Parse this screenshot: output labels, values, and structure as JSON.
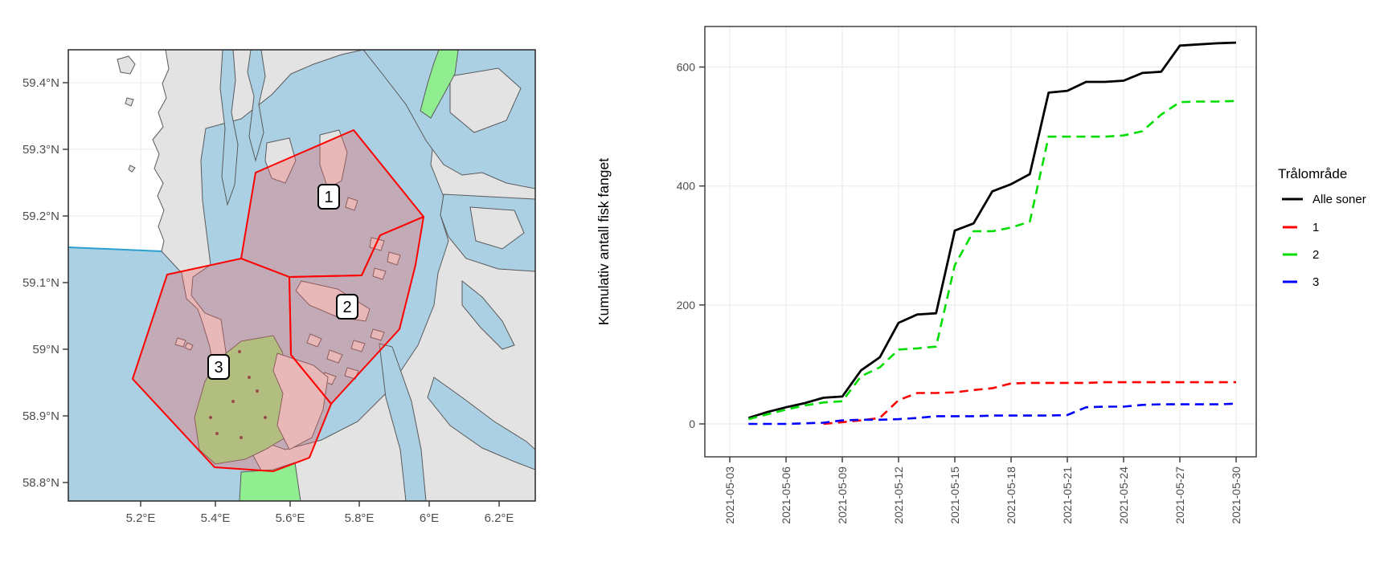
{
  "map": {
    "lat_ticks": [
      "59.4°N",
      "59.3°N",
      "59.2°N",
      "59.1°N",
      "59°N",
      "58.9°N",
      "58.8°N"
    ],
    "lon_ticks": [
      "5.2°E",
      "5.4°E",
      "5.6°E",
      "5.8°E",
      "6°E",
      "6.2°E"
    ],
    "zone_labels": [
      "1",
      "2",
      "3"
    ],
    "colors": {
      "sea": "#abd0e4",
      "land": "#e3e3e3",
      "no_data_area": "#ffffff",
      "green_area": "#90ee90",
      "green_in_zone": "#a3bf80",
      "zone_border": "#ff0000",
      "zone_fill": "rgba(240,100,100,0.35)",
      "sea_boundary_line": "#2b9fd0",
      "speckle": "#6b4040"
    }
  },
  "chart": {
    "ylabel": "Kumulativ antall fisk fanget",
    "legend": {
      "title": "Trålområde",
      "entries": [
        {
          "label": "Alle soner",
          "color": "#000000",
          "dashed": false
        },
        {
          "label": "1",
          "color": "#ff0000",
          "dashed": true
        },
        {
          "label": "2",
          "color": "#00dd00",
          "dashed": true
        },
        {
          "label": "3",
          "color": "#0000ff",
          "dashed": true
        }
      ]
    }
  },
  "chart_data": {
    "type": "line",
    "title": "",
    "xlabel": "",
    "ylabel": "Kumulativ antall fisk fanget",
    "legend_title": "Trålområde",
    "legend_position": "right",
    "grid": true,
    "yticks": [
      0,
      200,
      400,
      600
    ],
    "ylim": [
      -30,
      670
    ],
    "x_tick_labels": [
      "2021-05-03",
      "2021-05-06",
      "2021-05-09",
      "2021-05-12",
      "2021-05-15",
      "2021-05-18",
      "2021-05-21",
      "2021-05-24",
      "2021-05-27",
      "2021-05-30"
    ],
    "dates": [
      "2021-05-04",
      "2021-05-05",
      "2021-05-06",
      "2021-05-07",
      "2021-05-08",
      "2021-05-09",
      "2021-05-10",
      "2021-05-11",
      "2021-05-12",
      "2021-05-13",
      "2021-05-14",
      "2021-05-15",
      "2021-05-16",
      "2021-05-17",
      "2021-05-18",
      "2021-05-19",
      "2021-05-20",
      "2021-05-21",
      "2021-05-22",
      "2021-05-23",
      "2021-05-24",
      "2021-05-25",
      "2021-05-26",
      "2021-05-27",
      "2021-05-28",
      "2021-05-29",
      "2021-05-30"
    ],
    "series": [
      {
        "name": "Alle soner",
        "color": "#000000",
        "dashed": false,
        "values": [
          10,
          20,
          28,
          35,
          44,
          46,
          90,
          112,
          170,
          184,
          186,
          325,
          337,
          391,
          403,
          420,
          557,
          560,
          575,
          575,
          577,
          590,
          592,
          636,
          638,
          640,
          641
        ]
      },
      {
        "name": "1",
        "color": "#ff0000",
        "dashed": true,
        "values": [
          null,
          null,
          null,
          null,
          0,
          3,
          6,
          10,
          40,
          52,
          52,
          53,
          57,
          60,
          68,
          69,
          69,
          69,
          69,
          70,
          70,
          70,
          70,
          70,
          70,
          70,
          70
        ]
      },
      {
        "name": "2",
        "color": "#00dd00",
        "dashed": true,
        "values": [
          8,
          16,
          24,
          31,
          36,
          38,
          80,
          95,
          125,
          127,
          130,
          267,
          324,
          324,
          330,
          340,
          483,
          483,
          483,
          483,
          485,
          492,
          520,
          541,
          542,
          542,
          543
        ]
      },
      {
        "name": "3",
        "color": "#0000ff",
        "dashed": true,
        "values": [
          0,
          0,
          0,
          1,
          2,
          6,
          7,
          7,
          8,
          10,
          13,
          13,
          13,
          14,
          14,
          14,
          14,
          15,
          28,
          29,
          29,
          32,
          33,
          33,
          33,
          33,
          34
        ]
      }
    ]
  }
}
